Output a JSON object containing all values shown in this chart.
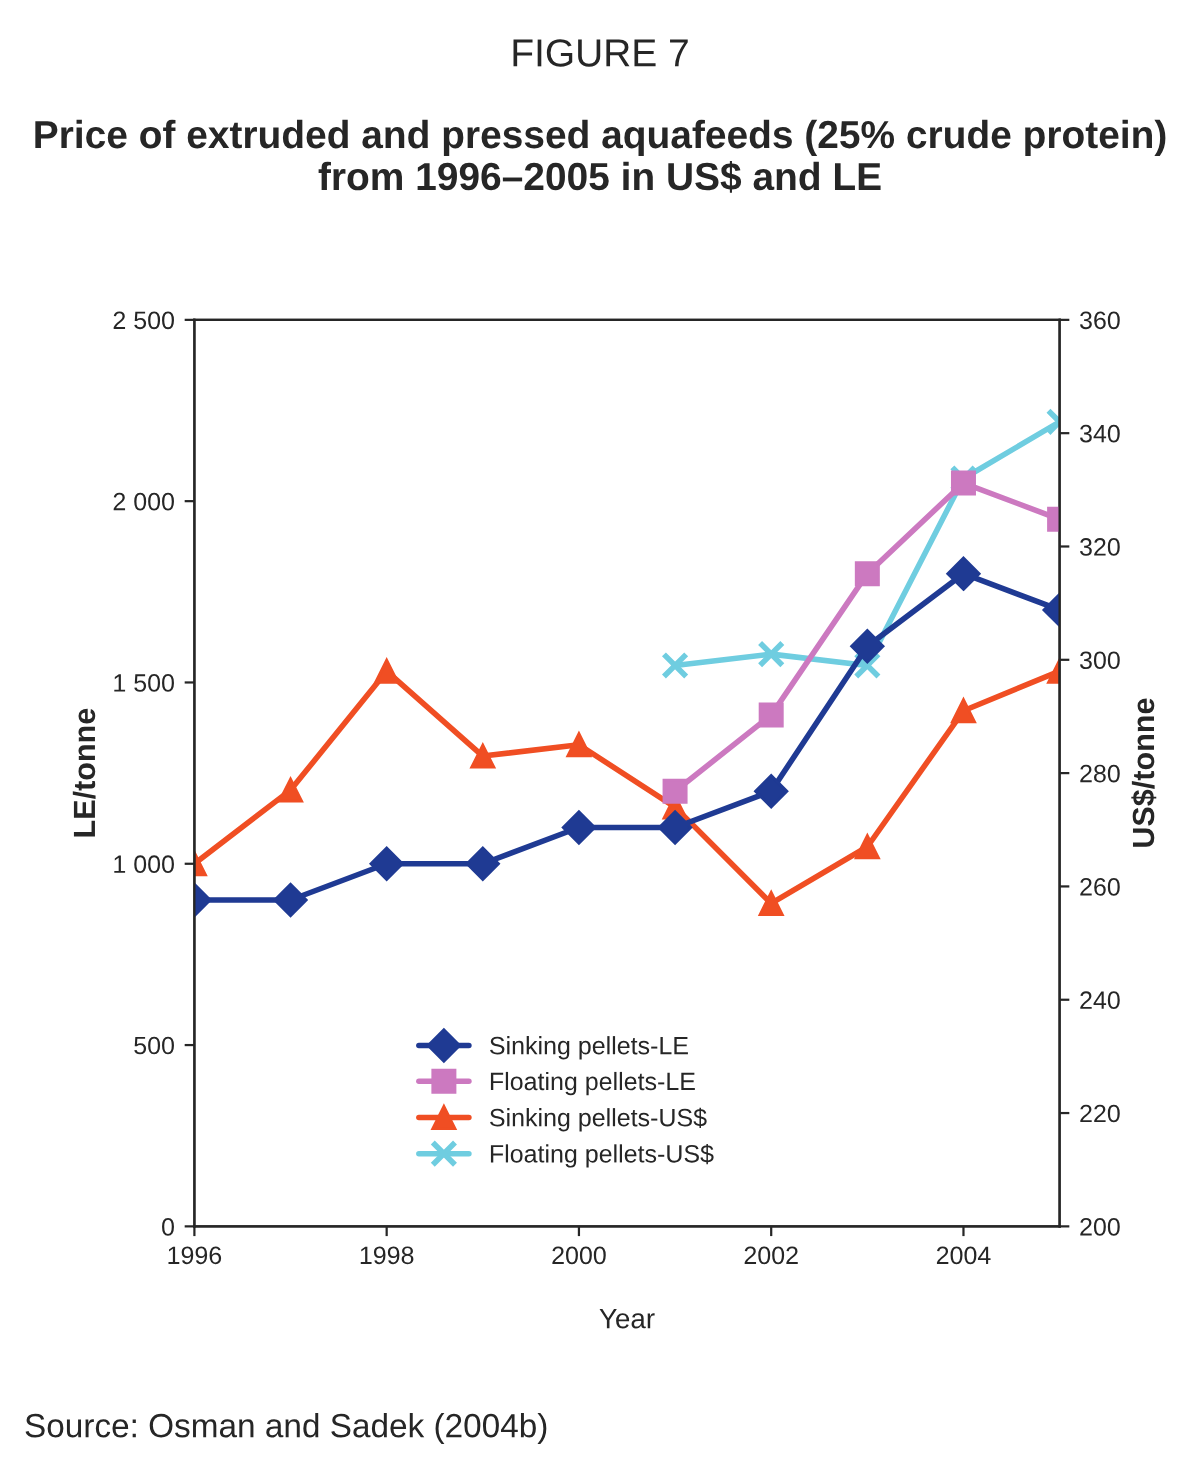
{
  "chart_data": {
    "type": "line",
    "title": "FIGURE 7",
    "subtitle": "Price of extruded and pressed aquafeeds (25% crude protein) from 1996–2005 in US$ and LE",
    "xlabel": "Year",
    "ylabel": "LE/tonne",
    "y2label": "US$/tonne",
    "x": [
      1996,
      1997,
      1998,
      1999,
      2000,
      2001,
      2002,
      2003,
      2004,
      2005
    ],
    "series": [
      {
        "name": "Sinking pellets-LE",
        "color": "#1f3a93",
        "marker": "diamond",
        "values": [
          900,
          900,
          1000,
          1000,
          1100,
          1100,
          1200,
          1600,
          1800,
          1700
        ]
      },
      {
        "name": "Floating pellets-LE",
        "color": "#cc79c0",
        "marker": "square",
        "values": [
          null,
          null,
          null,
          null,
          null,
          1200,
          1410,
          1800,
          2050,
          1950
        ]
      },
      {
        "name": "Sinking pellets-US$",
        "color": "#f04e23",
        "marker": "triangle",
        "axis": "y2",
        "values": [
          264,
          277,
          298,
          283,
          285,
          274,
          257,
          267,
          291,
          298
        ]
      },
      {
        "name": "Floating pellets-US$",
        "color": "#6fcde0",
        "marker": "cross",
        "axis": "y2",
        "values": [
          null,
          null,
          null,
          null,
          null,
          299,
          301,
          299,
          332,
          342
        ]
      }
    ],
    "xlim": [
      1996,
      2005
    ],
    "xticks": [
      1996,
      1998,
      2000,
      2002,
      2004
    ],
    "ylim": [
      0,
      2500
    ],
    "yticks": [
      0,
      500,
      {
        "value": 1000,
        "label": "1 000"
      },
      {
        "value": 1500,
        "label": "1 500"
      },
      {
        "value": 2000,
        "label": "2 000"
      },
      {
        "value": 2500,
        "label": "2 500"
      }
    ],
    "y2lim": [
      200,
      360
    ],
    "y2ticks": [
      200,
      220,
      240,
      260,
      280,
      300,
      320,
      340,
      360
    ],
    "grid": false,
    "legend": "bottom",
    "line_style": "solid",
    "annotations": [
      "Source: Osman and Sadek (2004b)"
    ]
  }
}
